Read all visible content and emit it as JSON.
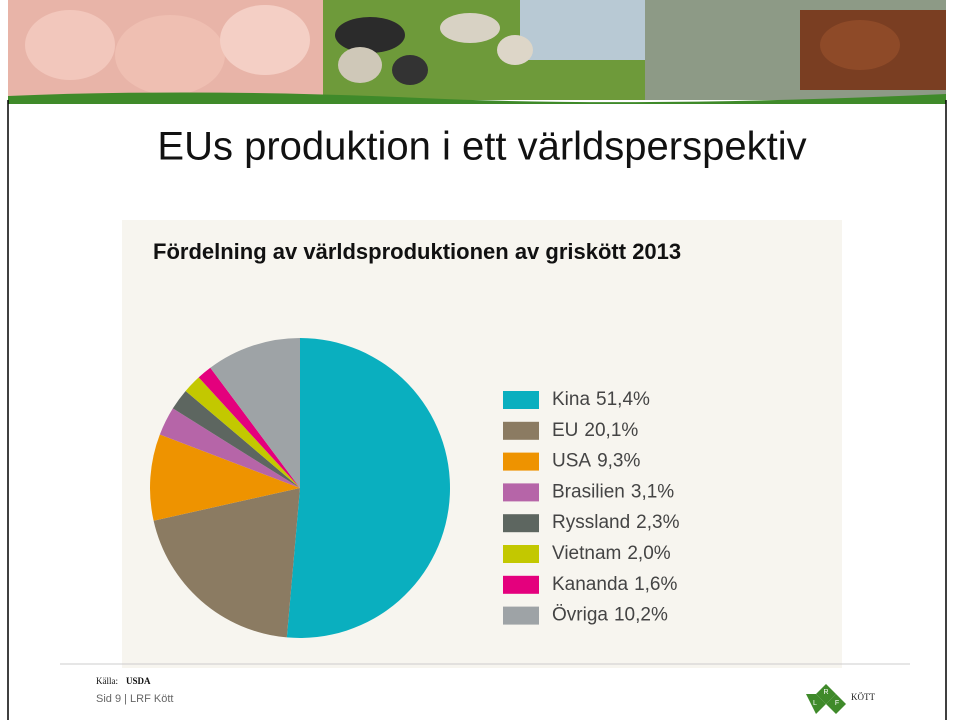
{
  "slide_title": "EUs produktion i ett världsperspektiv",
  "chart_data": {
    "type": "pie",
    "title": "Fördelning av världsproduktionen av griskött 2013",
    "categories": [
      "Kina",
      "EU",
      "USA",
      "Brasilien",
      "Ryssland",
      "Vietnam",
      "Kananda",
      "Övriga"
    ],
    "values": [
      51.4,
      20.1,
      9.3,
      3.1,
      2.3,
      2.0,
      1.6,
      10.2
    ],
    "value_labels": [
      "51,4%",
      "20,1%",
      "9,3%",
      "3,1%",
      "2,3%",
      "2,0%",
      "1,6%",
      "10,2%"
    ],
    "colors": [
      "#0aafbf",
      "#8b7b62",
      "#ee9300",
      "#b665a8",
      "#5d6660",
      "#c3c800",
      "#e4007d",
      "#9ea3a6"
    ],
    "legend": "right"
  },
  "source": {
    "label": "Källa:",
    "name": "USDA"
  },
  "footer": "Sid 9 | LRF Kött",
  "logo": {
    "letters": [
      "R",
      "L",
      "F"
    ],
    "text": "KÖTT"
  }
}
